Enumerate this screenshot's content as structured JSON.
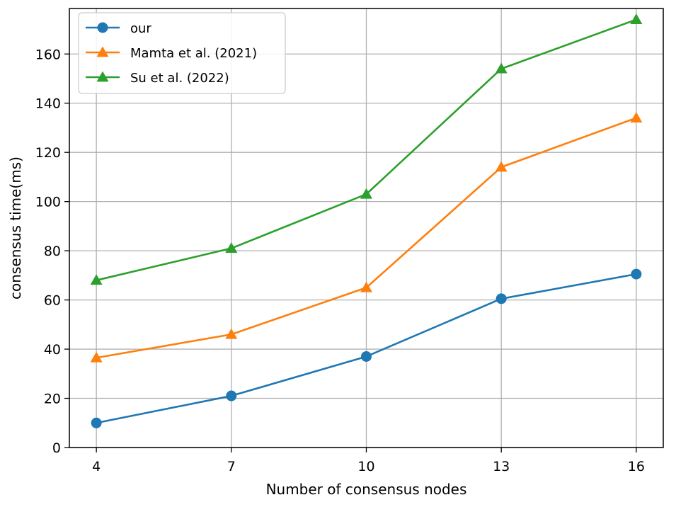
{
  "chart_data": {
    "type": "line",
    "title": "",
    "xlabel": "Number of consensus nodes",
    "ylabel": "consensus time(ms)",
    "x": [
      4,
      7,
      10,
      13,
      16
    ],
    "x_tick_labels": [
      "4",
      "7",
      "10",
      "13",
      "16"
    ],
    "xlim": [
      3.4,
      16.6
    ],
    "ylim": [
      0,
      178.5
    ],
    "y_ticks": [
      0,
      20,
      40,
      60,
      80,
      100,
      120,
      140,
      160
    ],
    "y_tick_labels": [
      "0",
      "20",
      "40",
      "60",
      "80",
      "100",
      "120",
      "140",
      "160"
    ],
    "grid": true,
    "legend_position": "top-left",
    "series": [
      {
        "name": "our",
        "values": [
          10,
          21,
          37,
          60.5,
          70.5
        ],
        "color": "#1f77b4",
        "marker": "circle"
      },
      {
        "name": "Mamta et al. (2021)",
        "values": [
          36.5,
          46,
          65,
          114,
          134
        ],
        "color": "#ff7f0e",
        "marker": "triangle"
      },
      {
        "name": "Su et al. (2022)",
        "values": [
          68,
          81,
          103,
          154,
          174
        ],
        "color": "#2ca02c",
        "marker": "triangle"
      }
    ]
  }
}
